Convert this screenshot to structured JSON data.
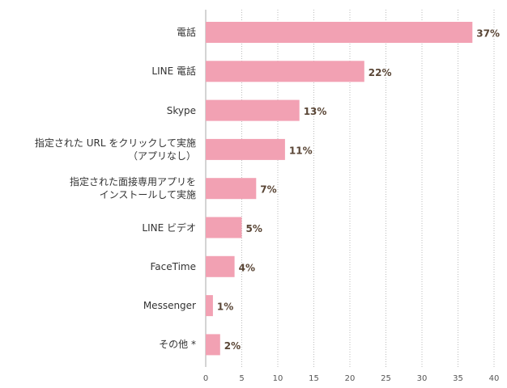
{
  "chart_data": {
    "type": "bar",
    "orientation": "horizontal",
    "categories": [
      "電話",
      "LINE 電話",
      "Skype",
      "指定された URL をクリックして実施\n（アプリなし）",
      "指定された面接専用アプリを\nインストールして実施",
      "LINE ビデオ",
      "FaceTime",
      "Messenger",
      "その他 *"
    ],
    "values": [
      37,
      22,
      13,
      11,
      7,
      5,
      4,
      1,
      2
    ],
    "value_labels": [
      "37%",
      "22%",
      "13%",
      "11%",
      "7%",
      "5%",
      "4%",
      "1%",
      "2%"
    ],
    "color": "#f2a1b3",
    "xlim": [
      0,
      40
    ],
    "xticks": [
      0,
      5,
      10,
      15,
      20,
      25,
      30,
      35,
      40
    ],
    "grid": true
  }
}
